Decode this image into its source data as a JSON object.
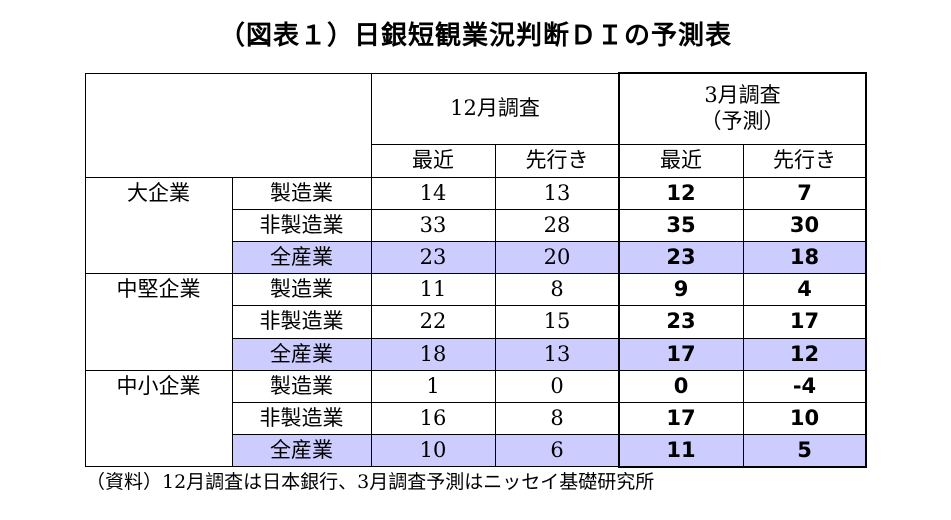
{
  "title": "（図表１）日銀短観業況判断ＤＩの予測表",
  "chart_data": {
    "type": "table",
    "title": "（図表１）日銀短観業況判断ＤＩの予測表",
    "header_groups": [
      {
        "label": "12月調査",
        "sub": "",
        "columns": [
          "最近",
          "先行き"
        ]
      },
      {
        "label": "3月調査",
        "sub": "（予測）",
        "columns": [
          "最近",
          "先行き"
        ]
      }
    ],
    "rows": [
      {
        "group": "大企業",
        "industry": "製造業",
        "values": [
          "14",
          "13",
          "12",
          "7"
        ],
        "highlight": false
      },
      {
        "group": "",
        "industry": "非製造業",
        "values": [
          "33",
          "28",
          "35",
          "30"
        ],
        "highlight": false
      },
      {
        "group": "",
        "industry": "全産業",
        "values": [
          "23",
          "20",
          "23",
          "18"
        ],
        "highlight": true
      },
      {
        "group": "中堅企業",
        "industry": "製造業",
        "values": [
          "11",
          "8",
          "9",
          "4"
        ],
        "highlight": false
      },
      {
        "group": "",
        "industry": "非製造業",
        "values": [
          "22",
          "15",
          "23",
          "17"
        ],
        "highlight": false
      },
      {
        "group": "",
        "industry": "全産業",
        "values": [
          "18",
          "13",
          "17",
          "12"
        ],
        "highlight": true
      },
      {
        "group": "中小企業",
        "industry": "製造業",
        "values": [
          "1",
          "0",
          "0",
          "-4"
        ],
        "highlight": false
      },
      {
        "group": "",
        "industry": "非製造業",
        "values": [
          "16",
          "8",
          "17",
          "10"
        ],
        "highlight": false
      },
      {
        "group": "",
        "industry": "全産業",
        "values": [
          "10",
          "6",
          "11",
          "5"
        ],
        "highlight": true
      }
    ],
    "highlight_color": "#ccccff",
    "footnote": "（資料）12月調査は日本銀行、3月調査予測はニッセイ基礎研究所"
  }
}
